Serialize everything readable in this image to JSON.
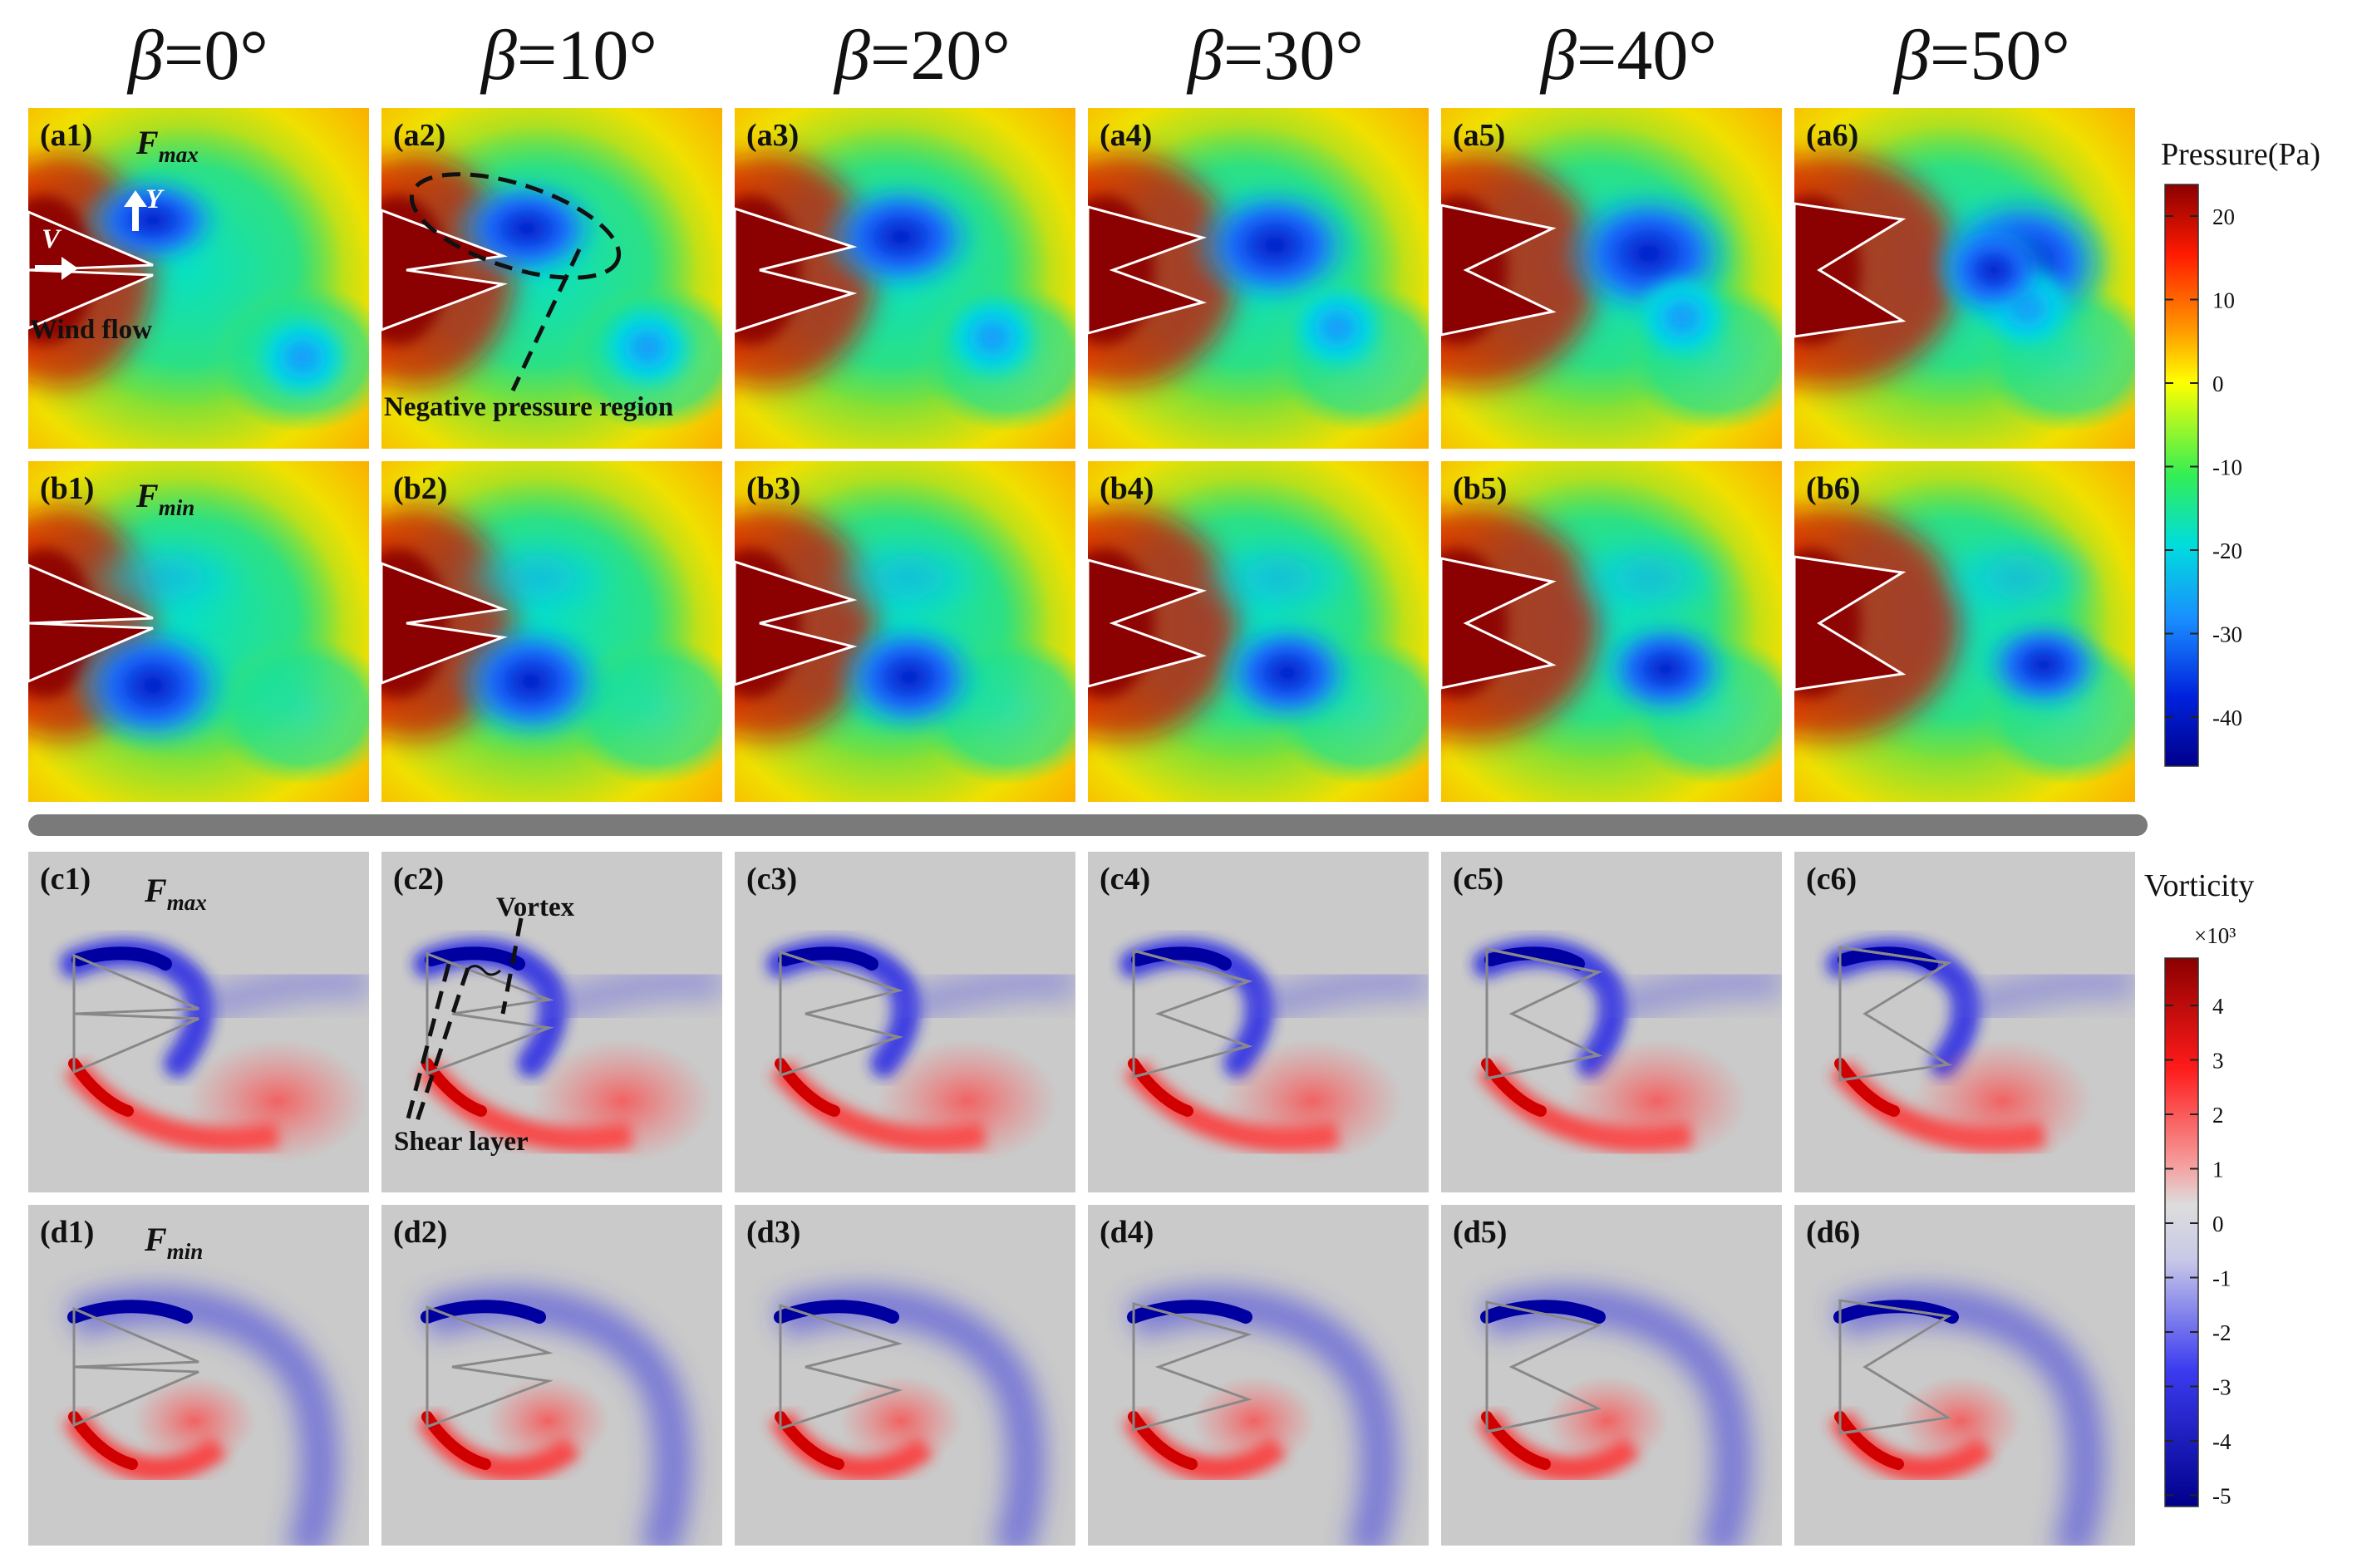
{
  "figure": {
    "columns": [
      {
        "symbol": "β",
        "value": "=0°"
      },
      {
        "symbol": "β",
        "value": "=10°"
      },
      {
        "symbol": "β",
        "value": "=20°"
      },
      {
        "symbol": "β",
        "value": "=30°"
      },
      {
        "symbol": "β",
        "value": "=40°"
      },
      {
        "symbol": "β",
        "value": "=50°"
      }
    ],
    "rows": {
      "a": {
        "labels": [
          "(a1)",
          "(a2)",
          "(a3)",
          "(a4)",
          "(a5)",
          "(a6)"
        ],
        "force_base": "F",
        "force_sub": "max",
        "field": "pressure"
      },
      "b": {
        "labels": [
          "(b1)",
          "(b2)",
          "(b3)",
          "(b4)",
          "(b5)",
          "(b6)"
        ],
        "force_base": "F",
        "force_sub": "min",
        "field": "pressure"
      },
      "c": {
        "labels": [
          "(c1)",
          "(c2)",
          "(c3)",
          "(c4)",
          "(c5)",
          "(c6)"
        ],
        "force_base": "F",
        "force_sub": "max",
        "field": "vorticity"
      },
      "d": {
        "labels": [
          "(d1)",
          "(d2)",
          "(d3)",
          "(d4)",
          "(d5)",
          "(d6)"
        ],
        "force_base": "F",
        "force_sub": "min",
        "field": "vorticity"
      }
    },
    "annotations": {
      "wind_flow": "Wind flow",
      "axis_y": "Y",
      "axis_v": "V",
      "negative_pressure": "Negative pressure region",
      "vortex": "Vortex",
      "shear_layer": "Shear layer"
    },
    "pressure_colorbar": {
      "title": "Pressure(Pa)",
      "ticks": [
        "20",
        "10",
        "0",
        "-10",
        "-20",
        "-30",
        "-40"
      ]
    },
    "vorticity_colorbar": {
      "title": "Vorticity",
      "multiplier": "×10³",
      "ticks": [
        "4",
        "3",
        "2",
        "1",
        "0",
        "-1",
        "-2",
        "-3",
        "-4",
        "-5"
      ]
    },
    "colors": {
      "pressure_high": "#8b0000",
      "pressure_mid": "#ffff00",
      "pressure_low": "#00008b",
      "vorticity_background": "#c8c8c8",
      "vorticity_positive": "#ff2020",
      "vorticity_negative": "#1e1ee6",
      "divider": "#7a7a7a"
    }
  }
}
